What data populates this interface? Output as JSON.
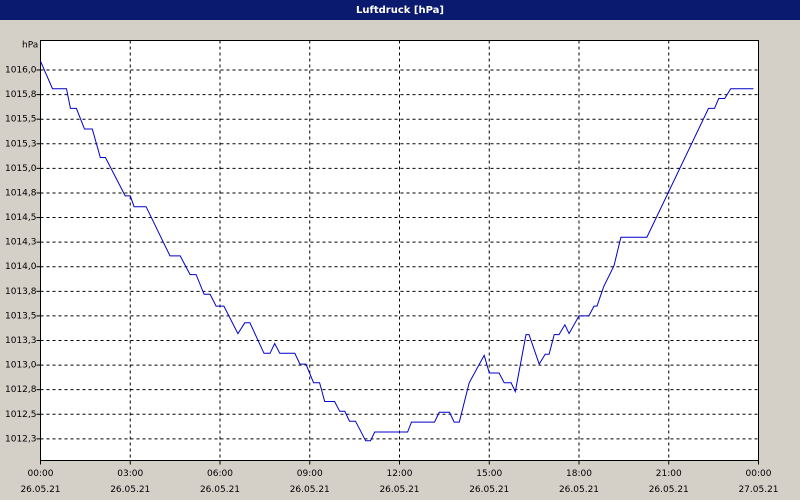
{
  "chart_data": {
    "type": "line",
    "title": "Luftdruck [hPa]",
    "y_label": "hPa",
    "color": "#0000cc",
    "grid": true,
    "x": [
      0,
      0.4,
      0.87,
      1.0,
      1.2,
      1.47,
      1.73,
      2.0,
      2.17,
      2.83,
      3.0,
      3.13,
      3.53,
      4.33,
      4.67,
      5.0,
      5.2,
      5.47,
      5.67,
      5.87,
      6.13,
      6.6,
      6.83,
      7.0,
      7.47,
      7.67,
      7.83,
      8.0,
      8.5,
      8.67,
      8.87,
      9.13,
      9.33,
      9.5,
      9.83,
      10.0,
      10.17,
      10.33,
      10.53,
      10.87,
      11.03,
      11.17,
      12.27,
      12.4,
      13.17,
      13.33,
      13.67,
      13.83,
      14.0,
      14.33,
      14.83,
      15.0,
      15.33,
      15.5,
      15.73,
      15.87,
      16.23,
      16.33,
      16.67,
      16.87,
      17.0,
      17.17,
      17.33,
      17.53,
      17.67,
      18.0,
      18.33,
      18.5,
      18.6,
      18.83,
      19.17,
      19.4,
      20.27,
      22.33,
      22.53,
      22.67,
      22.87,
      23.07,
      23.83
    ],
    "values": [
      1016.09,
      1015.81,
      1015.81,
      1015.61,
      1015.61,
      1015.4,
      1015.4,
      1015.11,
      1015.11,
      1014.72,
      1014.72,
      1014.61,
      1014.61,
      1014.11,
      1014.11,
      1013.92,
      1013.92,
      1013.72,
      1013.72,
      1013.6,
      1013.6,
      1013.32,
      1013.43,
      1013.43,
      1013.12,
      1013.12,
      1013.22,
      1013.12,
      1013.12,
      1013.01,
      1013.01,
      1012.82,
      1012.82,
      1012.63,
      1012.63,
      1012.53,
      1012.53,
      1012.43,
      1012.43,
      1012.23,
      1012.23,
      1012.32,
      1012.32,
      1012.42,
      1012.42,
      1012.52,
      1012.52,
      1012.42,
      1012.42,
      1012.82,
      1013.1,
      1012.92,
      1012.92,
      1012.82,
      1012.82,
      1012.73,
      1013.31,
      1013.31,
      1013.01,
      1013.11,
      1013.11,
      1013.31,
      1013.31,
      1013.41,
      1013.32,
      1013.5,
      1013.5,
      1013.6,
      1013.6,
      1013.8,
      1014.01,
      1014.3,
      1014.3,
      1015.61,
      1015.61,
      1015.71,
      1015.71,
      1015.81,
      1015.81
    ],
    "xlim": [
      0,
      24
    ],
    "xticks": [
      {
        "value": 0,
        "label": "00:00",
        "date": "26.05.21"
      },
      {
        "value": 3,
        "label": "03:00",
        "date": "26.05.21"
      },
      {
        "value": 6,
        "label": "06:00",
        "date": "26.05.21"
      },
      {
        "value": 9,
        "label": "09:00",
        "date": "26.05.21"
      },
      {
        "value": 12,
        "label": "12:00",
        "date": "26.05.21"
      },
      {
        "value": 15,
        "label": "15:00",
        "date": "26.05.21"
      },
      {
        "value": 18,
        "label": "18:00",
        "date": "26.05.21"
      },
      {
        "value": 21,
        "label": "21:00",
        "date": "26.05.21"
      },
      {
        "value": 24,
        "label": "00:00",
        "date": "27.05.21"
      }
    ],
    "ylim": [
      1012.03,
      1016.3
    ],
    "yticks": [
      {
        "value": 1016.0,
        "label": "1016,0"
      },
      {
        "value": 1015.75,
        "label": "1015,8"
      },
      {
        "value": 1015.5,
        "label": "1015,5"
      },
      {
        "value": 1015.25,
        "label": "1015,3"
      },
      {
        "value": 1015.0,
        "label": "1015,0"
      },
      {
        "value": 1014.75,
        "label": "1014,8"
      },
      {
        "value": 1014.5,
        "label": "1014,5"
      },
      {
        "value": 1014.25,
        "label": "1014,3"
      },
      {
        "value": 1014.0,
        "label": "1014,0"
      },
      {
        "value": 1013.75,
        "label": "1013,8"
      },
      {
        "value": 1013.5,
        "label": "1013,5"
      },
      {
        "value": 1013.25,
        "label": "1013,3"
      },
      {
        "value": 1013.0,
        "label": "1013,0"
      },
      {
        "value": 1012.75,
        "label": "1012,8"
      },
      {
        "value": 1012.5,
        "label": "1012,5"
      },
      {
        "value": 1012.25,
        "label": "1012,3"
      }
    ]
  }
}
